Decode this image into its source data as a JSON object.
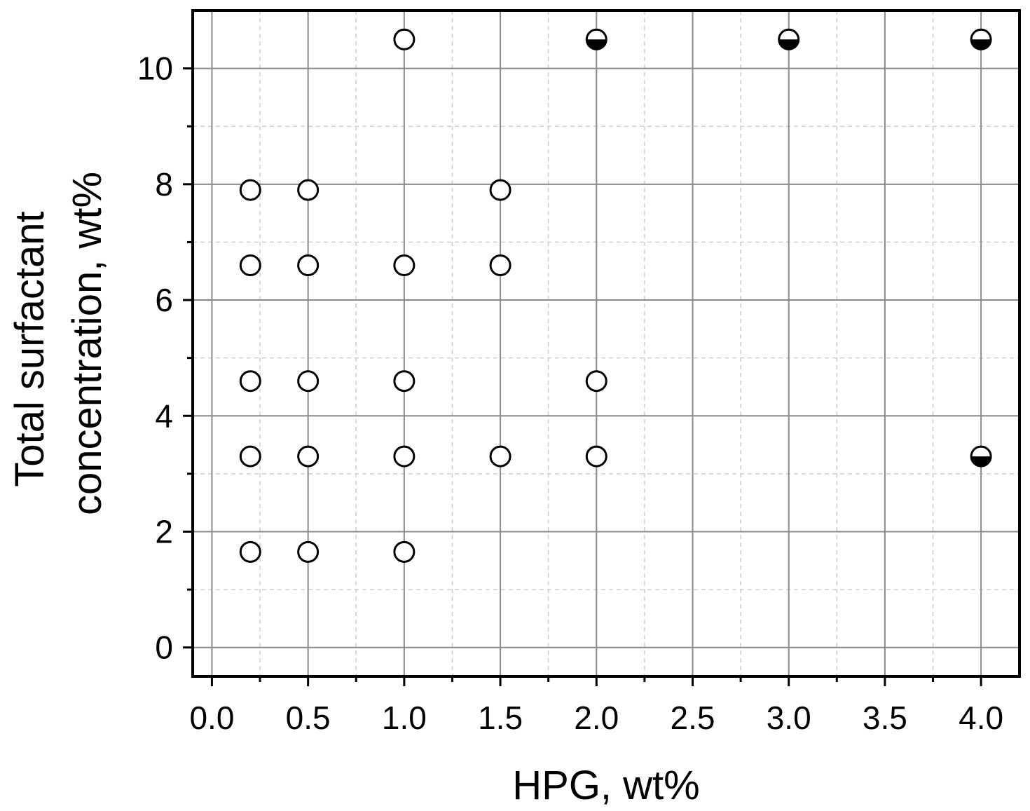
{
  "chart_data": {
    "type": "scatter",
    "xlabel": "HPG, wt%",
    "ylabel": [
      "Total surfactant",
      "concentration, wt%"
    ],
    "xlim": [
      -0.1,
      4.2
    ],
    "ylim": [
      -0.5,
      11
    ],
    "xticks": [
      "0.0",
      "0.5",
      "1.0",
      "1.5",
      "2.0",
      "2.5",
      "3.0",
      "3.5",
      "4.0"
    ],
    "xtick_values": [
      0,
      0.5,
      1,
      1.5,
      2,
      2.5,
      3,
      3.5,
      4
    ],
    "yticks": [
      "0",
      "2",
      "4",
      "6",
      "8",
      "10"
    ],
    "ytick_values": [
      0,
      2,
      4,
      6,
      8,
      10
    ],
    "grid": "major solid, minor dashed",
    "series": [
      {
        "marker": "open-circle",
        "points": [
          [
            0.2,
            7.9
          ],
          [
            0.5,
            7.9
          ],
          [
            1.5,
            7.9
          ],
          [
            0.2,
            6.6
          ],
          [
            0.5,
            6.6
          ],
          [
            1.0,
            6.6
          ],
          [
            1.5,
            6.6
          ],
          [
            0.2,
            4.6
          ],
          [
            0.5,
            4.6
          ],
          [
            1.0,
            4.6
          ],
          [
            2.0,
            4.6
          ],
          [
            0.2,
            3.3
          ],
          [
            0.5,
            3.3
          ],
          [
            1.0,
            3.3
          ],
          [
            1.5,
            3.3
          ],
          [
            2.0,
            3.3
          ],
          [
            0.2,
            1.65
          ],
          [
            0.5,
            1.65
          ],
          [
            1.0,
            1.65
          ],
          [
            1.0,
            10.5
          ]
        ]
      },
      {
        "marker": "half-filled-circle",
        "points": [
          [
            2.0,
            10.5
          ],
          [
            3.0,
            10.5
          ],
          [
            4.0,
            10.5
          ],
          [
            4.0,
            3.3
          ]
        ]
      }
    ]
  }
}
